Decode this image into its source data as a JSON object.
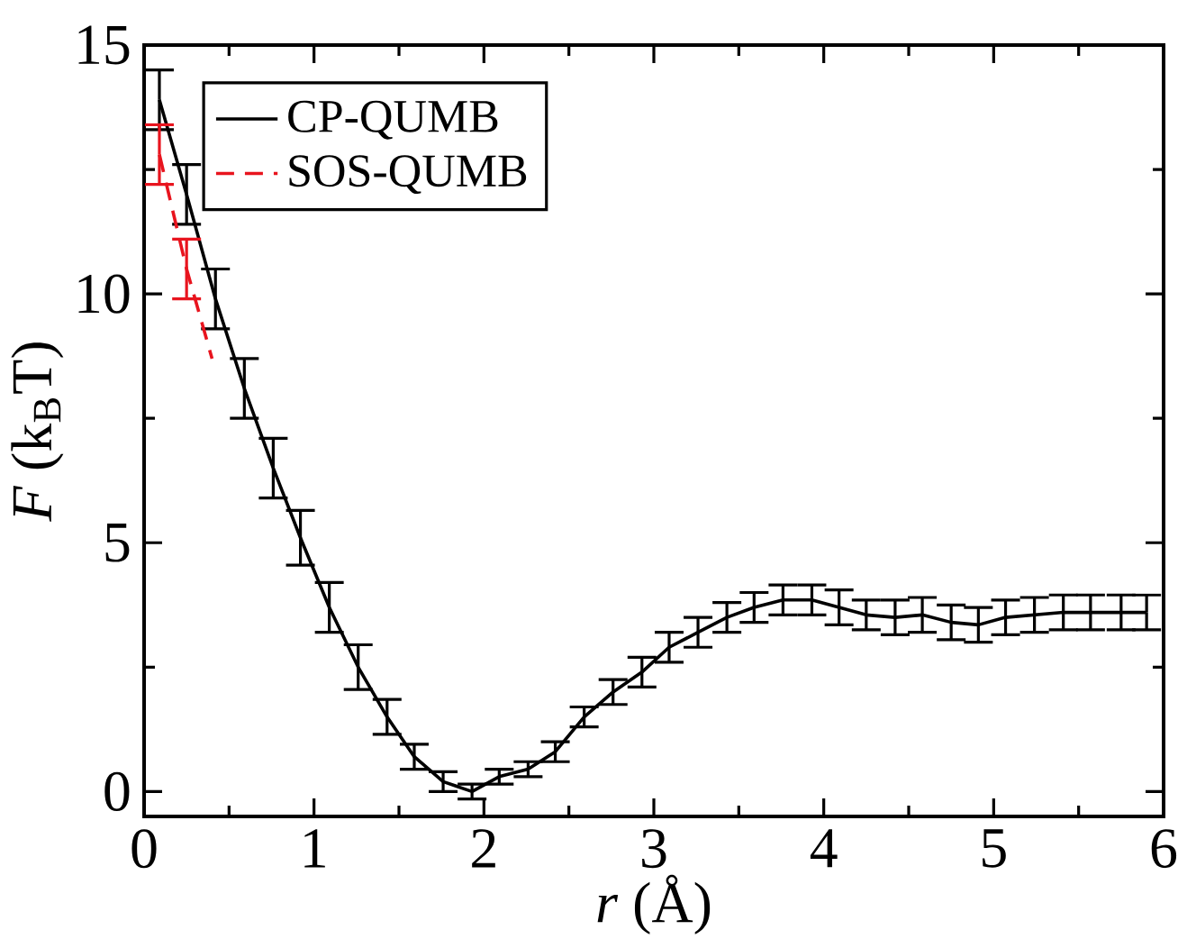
{
  "chart_data": {
    "type": "line",
    "xlabel": "*r* (Å)",
    "ylabel": "*F* (k$_{B}$T)",
    "xlim": [
      0,
      6
    ],
    "ylim": [
      -0.5,
      15
    ],
    "xticks": [
      0,
      1,
      2,
      3,
      4,
      5,
      6
    ],
    "yticks": [
      0,
      5,
      10,
      15
    ],
    "legend": "top left",
    "marker": "none",
    "series": [
      {
        "name": "CP-QUMB",
        "color": "#000000",
        "line_style": "solid",
        "x": [
          0.09,
          0.25,
          0.42,
          0.59,
          0.76,
          0.92,
          1.09,
          1.26,
          1.43,
          1.59,
          1.76,
          1.93,
          2.09,
          2.26,
          2.42,
          2.59,
          2.76,
          2.93,
          3.09,
          3.26,
          3.43,
          3.59,
          3.76,
          3.93,
          4.09,
          4.25,
          4.42,
          4.58,
          4.75,
          4.91,
          5.07,
          5.24,
          5.41,
          5.57,
          5.75,
          5.9
        ],
        "values": [
          13.9,
          12.0,
          9.9,
          8.1,
          6.5,
          5.1,
          3.7,
          2.5,
          1.5,
          0.7,
          0.2,
          0.0,
          0.3,
          0.45,
          0.8,
          1.5,
          2.0,
          2.4,
          2.9,
          3.2,
          3.5,
          3.7,
          3.85,
          3.85,
          3.7,
          3.55,
          3.5,
          3.55,
          3.4,
          3.35,
          3.5,
          3.55,
          3.6,
          3.6,
          3.6,
          3.6
        ],
        "errors": [
          0.6,
          0.6,
          0.6,
          0.6,
          0.6,
          0.55,
          0.5,
          0.45,
          0.35,
          0.25,
          0.2,
          0.15,
          0.15,
          0.15,
          0.2,
          0.2,
          0.25,
          0.3,
          0.3,
          0.3,
          0.3,
          0.3,
          0.3,
          0.3,
          0.35,
          0.3,
          0.35,
          0.35,
          0.35,
          0.35,
          0.35,
          0.35,
          0.35,
          0.35,
          0.35,
          0.35
        ]
      },
      {
        "name": "SOS-QUMB",
        "color": "#e8141e",
        "line_style": "dashed",
        "x": [
          0.09,
          0.25,
          0.4
        ],
        "values": [
          12.8,
          10.5,
          8.7
        ],
        "errors": [
          0.6,
          0.6,
          null
        ]
      }
    ]
  }
}
